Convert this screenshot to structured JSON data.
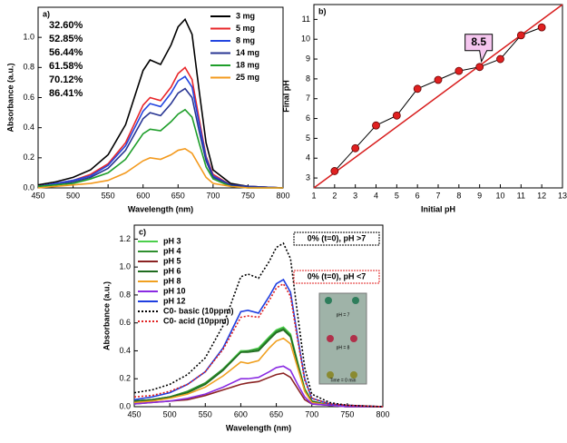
{
  "chart_data": [
    {
      "type": "line",
      "panel": "a)",
      "xlabel": "Wavelength (nm)",
      "ylabel": "Absorbance (a.u.)",
      "x": [
        450,
        475,
        500,
        525,
        550,
        575,
        600,
        610,
        625,
        640,
        650,
        660,
        670,
        680,
        690,
        700,
        725,
        750,
        800
      ],
      "xlim": [
        450,
        800
      ],
      "xticks": [
        450,
        500,
        550,
        600,
        650,
        700,
        750,
        800
      ],
      "ylim": [
        0,
        1.2
      ],
      "yticks": [
        {
          "value": 0,
          "label": "0.0"
        },
        0.2,
        0.4,
        0.6,
        0.8,
        {
          "value": 1,
          "label": "1.0"
        }
      ],
      "legend": "upper right",
      "series": [
        {
          "name": "3 mg",
          "color": "#000000",
          "values": [
            0.02,
            0.04,
            0.07,
            0.12,
            0.22,
            0.42,
            0.78,
            0.85,
            0.82,
            0.95,
            1.07,
            1.12,
            1.02,
            0.65,
            0.3,
            0.12,
            0.03,
            0.01,
            0
          ]
        },
        {
          "name": "5 mg",
          "color": "#e8262a",
          "values": [
            0.01,
            0.03,
            0.05,
            0.09,
            0.16,
            0.3,
            0.55,
            0.6,
            0.58,
            0.67,
            0.76,
            0.8,
            0.72,
            0.46,
            0.21,
            0.09,
            0.02,
            0.01,
            0
          ]
        },
        {
          "name": "8 mg",
          "color": "#2346e0",
          "values": [
            0.01,
            0.03,
            0.05,
            0.08,
            0.15,
            0.28,
            0.51,
            0.56,
            0.54,
            0.63,
            0.71,
            0.74,
            0.67,
            0.43,
            0.2,
            0.08,
            0.02,
            0.01,
            0
          ]
        },
        {
          "name": "14 mg",
          "color": "#283593",
          "values": [
            0.01,
            0.02,
            0.04,
            0.07,
            0.13,
            0.25,
            0.46,
            0.5,
            0.48,
            0.56,
            0.63,
            0.66,
            0.6,
            0.38,
            0.18,
            0.07,
            0.02,
            0.01,
            0
          ]
        },
        {
          "name": "18 mg",
          "color": "#1e9e2a",
          "values": [
            0.01,
            0.02,
            0.03,
            0.06,
            0.1,
            0.19,
            0.36,
            0.39,
            0.38,
            0.44,
            0.49,
            0.52,
            0.47,
            0.3,
            0.14,
            0.06,
            0.01,
            0,
            0
          ]
        },
        {
          "name": "25 mg",
          "color": "#f39a1e",
          "values": [
            0,
            0.01,
            0.02,
            0.03,
            0.05,
            0.1,
            0.18,
            0.2,
            0.19,
            0.22,
            0.25,
            0.26,
            0.23,
            0.15,
            0.07,
            0.03,
            0.01,
            0,
            0
          ]
        }
      ],
      "annotations": [
        {
          "text": "32.60%",
          "color": "#000000"
        },
        {
          "text": "52.85%",
          "color": "#e8262a"
        },
        {
          "text": "56.44%",
          "color": "#2346e0"
        },
        {
          "text": "61.58%",
          "color": "#283593"
        },
        {
          "text": "70.12%",
          "color": "#1e9e2a"
        },
        {
          "text": "86.41%",
          "color": "#f39a1e"
        }
      ]
    },
    {
      "type": "line",
      "panel": "b)",
      "xlabel": "Initial pH",
      "ylabel": "Final pH",
      "markers": true,
      "x": [
        2,
        3,
        4,
        5,
        6,
        7,
        8,
        9,
        10,
        11,
        12
      ],
      "xlim": [
        1,
        13
      ],
      "xticks": [
        1,
        2,
        3,
        4,
        5,
        6,
        7,
        8,
        9,
        10,
        11,
        12,
        13
      ],
      "ylim": [
        2.5,
        11.75
      ],
      "yticks": [
        3,
        4,
        5,
        6,
        7,
        8,
        9,
        10,
        11
      ],
      "series": [
        {
          "color": "#e02020",
          "values": [
            3.35,
            4.5,
            5.65,
            6.15,
            7.5,
            7.95,
            8.4,
            8.6,
            9.0,
            10.2,
            10.6
          ]
        }
      ],
      "reference_line": {
        "color": "#d81e1e",
        "x": [
          1,
          13
        ],
        "y": [
          2.5,
          11.75
        ]
      },
      "annotations": [
        {
          "text": "8.5",
          "color": "#000000"
        }
      ]
    },
    {
      "type": "line",
      "panel": "c)",
      "xlabel": "Wavelength (nm)",
      "ylabel": "Absorbance (a.u.)",
      "x": [
        450,
        475,
        500,
        525,
        550,
        575,
        600,
        610,
        625,
        640,
        650,
        660,
        670,
        680,
        690,
        700,
        725,
        750,
        800
      ],
      "xlim": [
        450,
        800
      ],
      "xticks": [
        450,
        500,
        550,
        600,
        650,
        700,
        750,
        800
      ],
      "ylim": [
        0,
        1.3
      ],
      "yticks": [
        {
          "value": 0,
          "label": "0.0"
        },
        0.2,
        0.4,
        0.6,
        0.8,
        {
          "value": 1,
          "label": "1.0"
        },
        1.2
      ],
      "legend": "upper left",
      "series": [
        {
          "name": "pH 3",
          "color": "#4ccf4c",
          "values": [
            0.04,
            0.05,
            0.07,
            0.11,
            0.17,
            0.27,
            0.4,
            0.4,
            0.42,
            0.5,
            0.55,
            0.57,
            0.52,
            0.32,
            0.13,
            0.04,
            0.01,
            0,
            0
          ]
        },
        {
          "name": "pH 4",
          "color": "#2f8f2f",
          "values": [
            0.04,
            0.05,
            0.07,
            0.11,
            0.17,
            0.27,
            0.39,
            0.4,
            0.41,
            0.49,
            0.54,
            0.56,
            0.51,
            0.31,
            0.12,
            0.04,
            0.01,
            0,
            0
          ]
        },
        {
          "name": "pH 5",
          "color": "#8b2323",
          "values": [
            0.02,
            0.03,
            0.04,
            0.05,
            0.08,
            0.12,
            0.16,
            0.17,
            0.18,
            0.21,
            0.23,
            0.24,
            0.21,
            0.13,
            0.05,
            0.02,
            0.01,
            0,
            0
          ]
        },
        {
          "name": "pH 6",
          "color": "#1f6b1f",
          "values": [
            0.04,
            0.05,
            0.07,
            0.1,
            0.16,
            0.26,
            0.39,
            0.39,
            0.4,
            0.48,
            0.53,
            0.55,
            0.5,
            0.31,
            0.12,
            0.04,
            0.01,
            0,
            0
          ]
        },
        {
          "name": "pH 8",
          "color": "#f0a020",
          "values": [
            0.03,
            0.04,
            0.06,
            0.09,
            0.14,
            0.22,
            0.32,
            0.31,
            0.33,
            0.42,
            0.47,
            0.49,
            0.45,
            0.28,
            0.11,
            0.03,
            0.01,
            0,
            0
          ]
        },
        {
          "name": "pH 10",
          "color": "#8a2be2",
          "values": [
            0.02,
            0.03,
            0.04,
            0.06,
            0.09,
            0.14,
            0.2,
            0.2,
            0.21,
            0.25,
            0.28,
            0.29,
            0.26,
            0.16,
            0.07,
            0.02,
            0.01,
            0,
            0
          ]
        },
        {
          "name": "pH 12",
          "color": "#1f3fe0",
          "values": [
            0.05,
            0.07,
            0.1,
            0.16,
            0.25,
            0.42,
            0.68,
            0.69,
            0.67,
            0.79,
            0.88,
            0.91,
            0.82,
            0.5,
            0.2,
            0.06,
            0.02,
            0.01,
            0
          ]
        },
        {
          "name": "C0- basic (10ppm)",
          "color": "#000000",
          "dash": true,
          "values": [
            0.1,
            0.12,
            0.16,
            0.23,
            0.35,
            0.58,
            0.93,
            0.95,
            0.92,
            1.04,
            1.14,
            1.17,
            1.06,
            0.66,
            0.28,
            0.09,
            0.03,
            0.01,
            0
          ]
        },
        {
          "name": "C0- acid (10ppm)",
          "color": "#e02020",
          "dash": true,
          "values": [
            0.07,
            0.08,
            0.11,
            0.16,
            0.25,
            0.41,
            0.64,
            0.65,
            0.64,
            0.76,
            0.85,
            0.88,
            0.79,
            0.48,
            0.19,
            0.06,
            0.02,
            0.01,
            0
          ]
        }
      ],
      "annotations": [
        {
          "text": "0% (t=0), pH >7",
          "color": "#000000"
        },
        {
          "text": "0% (t=0), pH <7",
          "color": "#e02020"
        }
      ],
      "inset_labels": [
        "pH = 7",
        "pH = 8",
        "Time = 0 min"
      ]
    }
  ]
}
